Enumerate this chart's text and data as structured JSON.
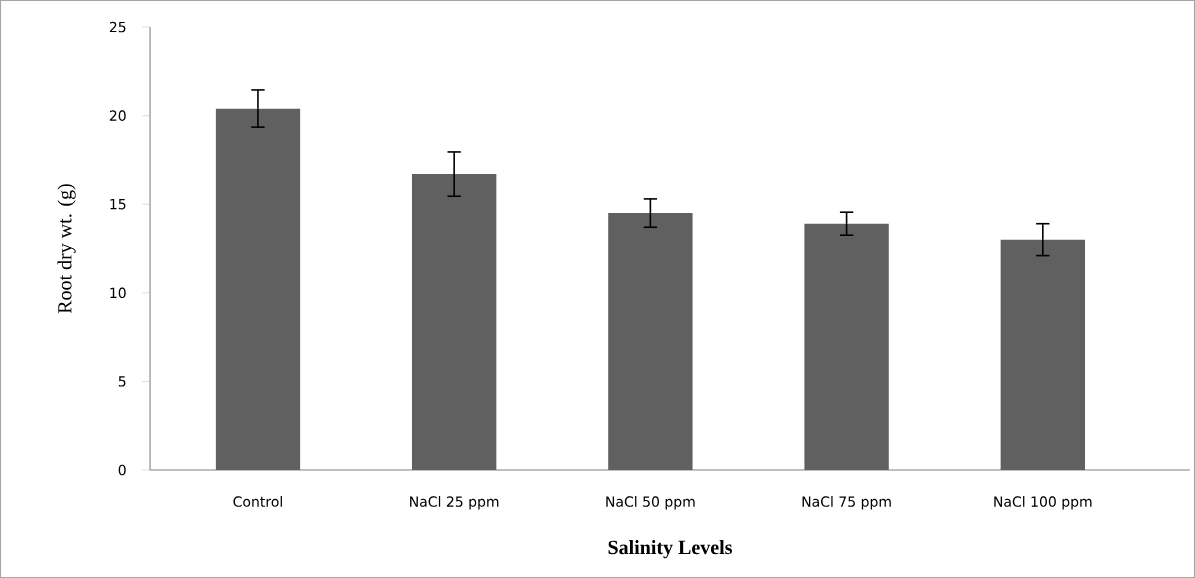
{
  "chart_data": {
    "type": "bar",
    "xlabel": "Salinity Levels",
    "ylabel": "Root dry wt. (g)",
    "categories": [
      "Control",
      "NaCl 25 ppm",
      "NaCl 50 ppm",
      "NaCl 75 ppm",
      "NaCl 100 ppm"
    ],
    "values": [
      20.4,
      16.7,
      14.5,
      13.9,
      13.0
    ],
    "errors": [
      1.05,
      1.25,
      0.8,
      0.65,
      0.9
    ],
    "color": "#606060",
    "ylim": [
      0,
      25
    ],
    "yticks": [
      0,
      5,
      10,
      15,
      20,
      25
    ]
  }
}
